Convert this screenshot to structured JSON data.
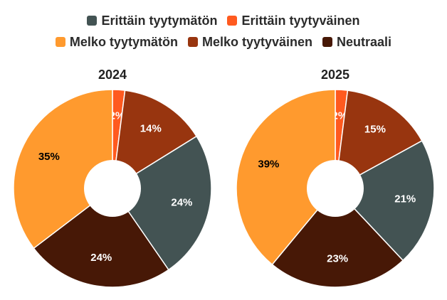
{
  "chart_data": {
    "type": "pie",
    "variant": "donut",
    "legend_position": "top",
    "categories": [
      "Erittäin tyytyväinen",
      "Melko tyytyväinen",
      "Erittäin tyytymätön",
      "Neutraali",
      "Melko tyytymätön"
    ],
    "colors": {
      "Erittäin tyytymätön": "#435353",
      "Erittäin tyytyväinen": "#ff5a1f",
      "Melko tyytymätön": "#ff9a2e",
      "Melko tyytyväinen": "#98350f",
      "Neutraali": "#471806"
    },
    "label_colors": {
      "Erittäin tyytymätön": "#ffffff",
      "Erittäin tyytyväinen": "#ffffff",
      "Melko tyytymätön": "#000000",
      "Melko tyytyväinen": "#ffffff",
      "Neutraali": "#ffffff"
    },
    "charts": [
      {
        "title": "2024",
        "values": [
          2,
          14,
          24,
          24,
          35
        ]
      },
      {
        "title": "2025",
        "values": [
          2,
          15,
          21,
          23,
          39
        ]
      }
    ]
  },
  "legend": {
    "rows": [
      [
        {
          "label": "Erittäin tyytymätön",
          "color": "#435353"
        },
        {
          "label": "Erittäin tyytyväinen",
          "color": "#ff5a1f"
        }
      ],
      [
        {
          "label": "Melko tyytymätön",
          "color": "#ff9a2e"
        },
        {
          "label": "Melko tyytyväinen",
          "color": "#98350f"
        },
        {
          "label": "Neutraali",
          "color": "#471806"
        }
      ]
    ]
  }
}
